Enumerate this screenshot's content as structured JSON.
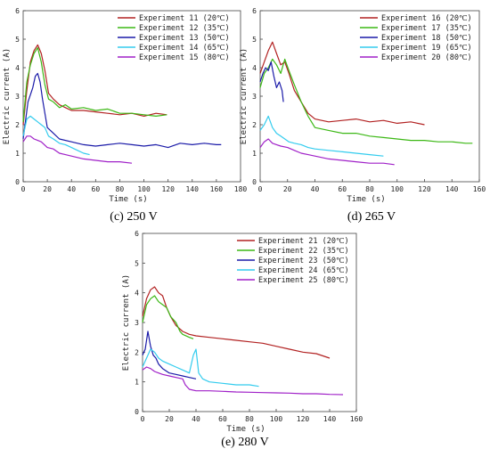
{
  "panels": [
    {
      "id": "c",
      "caption": "(c) 250 V",
      "xlabel": "Time (s)",
      "ylabel": "Electric current (A)",
      "xlim": [
        0,
        180
      ],
      "ylim": [
        0,
        6
      ],
      "xticks": [
        "0",
        "20",
        "40",
        "60",
        "80",
        "100",
        "120",
        "140",
        "160",
        "180"
      ],
      "yticks": [
        "0",
        "1",
        "2",
        "3",
        "4",
        "5",
        "6"
      ],
      "legend": [
        "Experiment 11 (20℃)",
        "Experiment 12 (35℃)",
        "Experiment 13 (50℃)",
        "Experiment 14 (65℃)",
        "Experiment 15 (80℃)"
      ]
    },
    {
      "id": "d",
      "caption": "(d) 265 V",
      "xlabel": "Time (s)",
      "ylabel": "Electric current (A)",
      "xlim": [
        0,
        160
      ],
      "ylim": [
        0,
        6
      ],
      "xticks": [
        "0",
        "20",
        "40",
        "60",
        "80",
        "100",
        "120",
        "140",
        "160"
      ],
      "yticks": [
        "0",
        "1",
        "2",
        "3",
        "4",
        "5",
        "6"
      ],
      "legend": [
        "Experiment 16 (20℃)",
        "Experiment 17 (35℃)",
        "Experiment 18 (50℃)",
        "Experiment 19 (65℃)",
        "Experiment 20 (80℃)"
      ]
    },
    {
      "id": "e",
      "caption": "(e) 280 V",
      "xlabel": "Time (s)",
      "ylabel": "Electric current (A)",
      "xlim": [
        0,
        160
      ],
      "ylim": [
        0,
        6
      ],
      "xticks": [
        "0",
        "20",
        "40",
        "60",
        "80",
        "100",
        "120",
        "140",
        "160"
      ],
      "yticks": [
        "0",
        "1",
        "2",
        "3",
        "4",
        "5",
        "6"
      ],
      "legend": [
        "Experiment 21 (20℃)",
        "Experiment 22 (35℃)",
        "Experiment 23 (50℃)",
        "Experiment 24 (65℃)",
        "Experiment 25 (80℃)"
      ]
    }
  ],
  "colors": [
    "#b22222",
    "#3cb815",
    "#1a1aa8",
    "#33ccee",
    "#a020c8"
  ],
  "chart_data": [
    {
      "type": "line",
      "xlabel": "Time (s)",
      "ylabel": "Electric current (A)",
      "xlim": [
        0,
        180
      ],
      "ylim": [
        0,
        6
      ],
      "series": [
        {
          "name": "Experiment 11 (20℃)",
          "x": [
            0,
            3,
            6,
            9,
            12,
            15,
            18,
            21,
            25,
            30,
            35,
            40,
            50,
            60,
            70,
            80,
            90,
            100,
            110,
            119
          ],
          "y": [
            2.0,
            3.2,
            4.2,
            4.6,
            4.8,
            4.5,
            3.9,
            3.1,
            2.9,
            2.7,
            2.6,
            2.5,
            2.5,
            2.45,
            2.4,
            2.35,
            2.4,
            2.3,
            2.4,
            2.35
          ]
        },
        {
          "name": "Experiment 12 (35℃)",
          "x": [
            0,
            3,
            6,
            9,
            12,
            15,
            18,
            21,
            25,
            30,
            35,
            40,
            50,
            60,
            70,
            80,
            90,
            100,
            110,
            119
          ],
          "y": [
            2.1,
            3.5,
            4.1,
            4.5,
            4.7,
            4.2,
            3.4,
            2.9,
            2.8,
            2.6,
            2.7,
            2.55,
            2.6,
            2.5,
            2.55,
            2.4,
            2.4,
            2.35,
            2.3,
            2.35
          ]
        },
        {
          "name": "Experiment 13 (50℃)",
          "x": [
            0,
            4,
            8,
            10,
            12,
            14,
            16,
            18,
            20,
            25,
            30,
            40,
            50,
            60,
            70,
            80,
            90,
            100,
            110,
            120,
            130,
            140,
            150,
            160,
            164
          ],
          "y": [
            1.5,
            2.8,
            3.3,
            3.7,
            3.8,
            3.5,
            2.9,
            2.4,
            1.9,
            1.7,
            1.5,
            1.4,
            1.3,
            1.25,
            1.3,
            1.35,
            1.3,
            1.25,
            1.3,
            1.2,
            1.35,
            1.3,
            1.35,
            1.3,
            1.3
          ]
        },
        {
          "name": "Experiment 14 (65℃)",
          "x": [
            0,
            3,
            6,
            9,
            12,
            15,
            18,
            21,
            25,
            30,
            35,
            40,
            45,
            50,
            55
          ],
          "y": [
            1.6,
            2.2,
            2.3,
            2.2,
            2.1,
            2.0,
            1.9,
            1.6,
            1.5,
            1.35,
            1.3,
            1.2,
            1.1,
            1.0,
            0.95
          ]
        },
        {
          "name": "Experiment 15 (80℃)",
          "x": [
            0,
            3,
            6,
            9,
            12,
            15,
            20,
            25,
            30,
            35,
            40,
            50,
            60,
            70,
            80,
            90
          ],
          "y": [
            1.4,
            1.6,
            1.6,
            1.5,
            1.45,
            1.4,
            1.2,
            1.15,
            1.0,
            0.95,
            0.9,
            0.8,
            0.75,
            0.7,
            0.7,
            0.65
          ]
        }
      ]
    },
    {
      "type": "line",
      "xlabel": "Time (s)",
      "ylabel": "Electric current (A)",
      "xlim": [
        0,
        160
      ],
      "ylim": [
        0,
        6
      ],
      "series": [
        {
          "name": "Experiment 16 (20℃)",
          "x": [
            0,
            3,
            6,
            9,
            12,
            15,
            18,
            21,
            25,
            30,
            35,
            40,
            50,
            60,
            70,
            80,
            90,
            100,
            110,
            120
          ],
          "y": [
            3.8,
            4.2,
            4.6,
            4.9,
            4.5,
            4.1,
            4.2,
            3.8,
            3.2,
            2.8,
            2.4,
            2.2,
            2.1,
            2.15,
            2.2,
            2.1,
            2.15,
            2.05,
            2.1,
            2.0
          ]
        },
        {
          "name": "Experiment 17 (35℃)",
          "x": [
            0,
            3,
            6,
            9,
            12,
            15,
            18,
            21,
            25,
            30,
            35,
            40,
            50,
            60,
            70,
            80,
            90,
            100,
            110,
            120,
            130,
            140,
            150,
            155
          ],
          "y": [
            3.3,
            3.8,
            4.0,
            4.3,
            4.1,
            3.8,
            4.3,
            3.9,
            3.4,
            2.8,
            2.3,
            1.9,
            1.8,
            1.7,
            1.7,
            1.6,
            1.55,
            1.5,
            1.45,
            1.45,
            1.4,
            1.4,
            1.35,
            1.35
          ]
        },
        {
          "name": "Experiment 18 (50℃)",
          "x": [
            0,
            2,
            4,
            6,
            8,
            10,
            12,
            14,
            16,
            17
          ],
          "y": [
            3.5,
            3.8,
            4.0,
            3.9,
            4.2,
            3.7,
            3.3,
            3.5,
            3.2,
            2.8
          ]
        },
        {
          "name": "Experiment 19 (65℃)",
          "x": [
            0,
            3,
            6,
            9,
            12,
            15,
            18,
            21,
            25,
            30,
            35,
            40,
            50,
            60,
            70,
            80,
            90
          ],
          "y": [
            1.8,
            2.0,
            2.3,
            1.9,
            1.7,
            1.6,
            1.5,
            1.4,
            1.35,
            1.3,
            1.2,
            1.15,
            1.1,
            1.05,
            1.0,
            0.95,
            0.9
          ]
        },
        {
          "name": "Experiment 20 (80℃)",
          "x": [
            0,
            3,
            6,
            9,
            12,
            15,
            20,
            25,
            30,
            35,
            40,
            50,
            60,
            70,
            80,
            90,
            98
          ],
          "y": [
            1.2,
            1.4,
            1.5,
            1.35,
            1.3,
            1.25,
            1.2,
            1.1,
            1.0,
            0.95,
            0.9,
            0.8,
            0.75,
            0.7,
            0.65,
            0.65,
            0.6
          ]
        }
      ]
    },
    {
      "type": "line",
      "xlabel": "Time (s)",
      "ylabel": "Electric current (A)",
      "xlim": [
        0,
        160
      ],
      "ylim": [
        0,
        6
      ],
      "series": [
        {
          "name": "Experiment 21 (20℃)",
          "x": [
            0,
            3,
            6,
            9,
            12,
            15,
            18,
            21,
            25,
            30,
            35,
            40,
            50,
            60,
            70,
            80,
            90,
            100,
            110,
            120,
            130,
            140
          ],
          "y": [
            3.2,
            3.8,
            4.1,
            4.2,
            4.0,
            3.9,
            3.5,
            3.2,
            2.9,
            2.7,
            2.6,
            2.55,
            2.5,
            2.45,
            2.4,
            2.35,
            2.3,
            2.2,
            2.1,
            2.0,
            1.95,
            1.8
          ]
        },
        {
          "name": "Experiment 22 (35℃)",
          "x": [
            0,
            3,
            6,
            9,
            12,
            15,
            18,
            21,
            25,
            28,
            30,
            35,
            38
          ],
          "y": [
            3.0,
            3.6,
            3.8,
            3.9,
            3.7,
            3.6,
            3.5,
            3.2,
            3.0,
            2.7,
            2.6,
            2.5,
            2.45
          ]
        },
        {
          "name": "Experiment 23 (50℃)",
          "x": [
            0,
            2,
            4,
            6,
            8,
            10,
            12,
            15,
            20,
            25,
            30,
            35,
            40
          ],
          "y": [
            1.9,
            2.1,
            2.7,
            2.2,
            1.9,
            1.8,
            1.6,
            1.45,
            1.3,
            1.25,
            1.2,
            1.15,
            1.1
          ]
        },
        {
          "name": "Experiment 24 (65℃)",
          "x": [
            0,
            3,
            6,
            9,
            12,
            15,
            20,
            25,
            30,
            35,
            38,
            40,
            42,
            45,
            50,
            60,
            70,
            80,
            87
          ],
          "y": [
            1.5,
            1.8,
            2.1,
            2.0,
            1.8,
            1.7,
            1.6,
            1.5,
            1.4,
            1.3,
            1.9,
            2.1,
            1.3,
            1.1,
            1.0,
            0.95,
            0.9,
            0.9,
            0.85
          ]
        },
        {
          "name": "Experiment 25 (80℃)",
          "x": [
            0,
            3,
            6,
            9,
            12,
            15,
            20,
            25,
            30,
            32,
            35,
            40,
            50,
            60,
            70,
            80,
            90,
            100,
            110,
            120,
            130,
            140,
            150
          ],
          "y": [
            1.4,
            1.5,
            1.45,
            1.35,
            1.3,
            1.25,
            1.2,
            1.15,
            1.1,
            0.9,
            0.75,
            0.7,
            0.7,
            0.68,
            0.66,
            0.65,
            0.64,
            0.63,
            0.62,
            0.6,
            0.6,
            0.58,
            0.57
          ]
        }
      ]
    }
  ]
}
